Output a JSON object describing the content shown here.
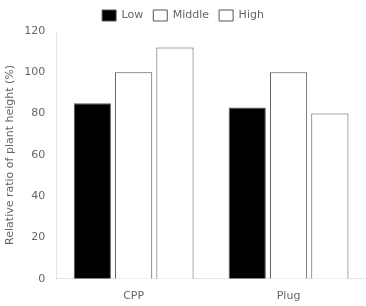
{
  "chart_data": {
    "type": "bar",
    "categories": [
      "CPP",
      "Plug"
    ],
    "series": [
      {
        "name": "Low",
        "color": "#000000",
        "values": [
          85,
          83
        ]
      },
      {
        "name": "Middle",
        "color": "#ffffff",
        "values": [
          100,
          100
        ]
      },
      {
        "name": "High",
        "color": "#ffffff",
        "values": [
          112,
          80
        ]
      }
    ],
    "ylabel": "Relative ratio of plant height (%)",
    "ylim": [
      0,
      120
    ],
    "yticks": [
      0,
      20,
      40,
      60,
      80,
      100,
      120
    ],
    "grid": false,
    "legend": "top"
  }
}
